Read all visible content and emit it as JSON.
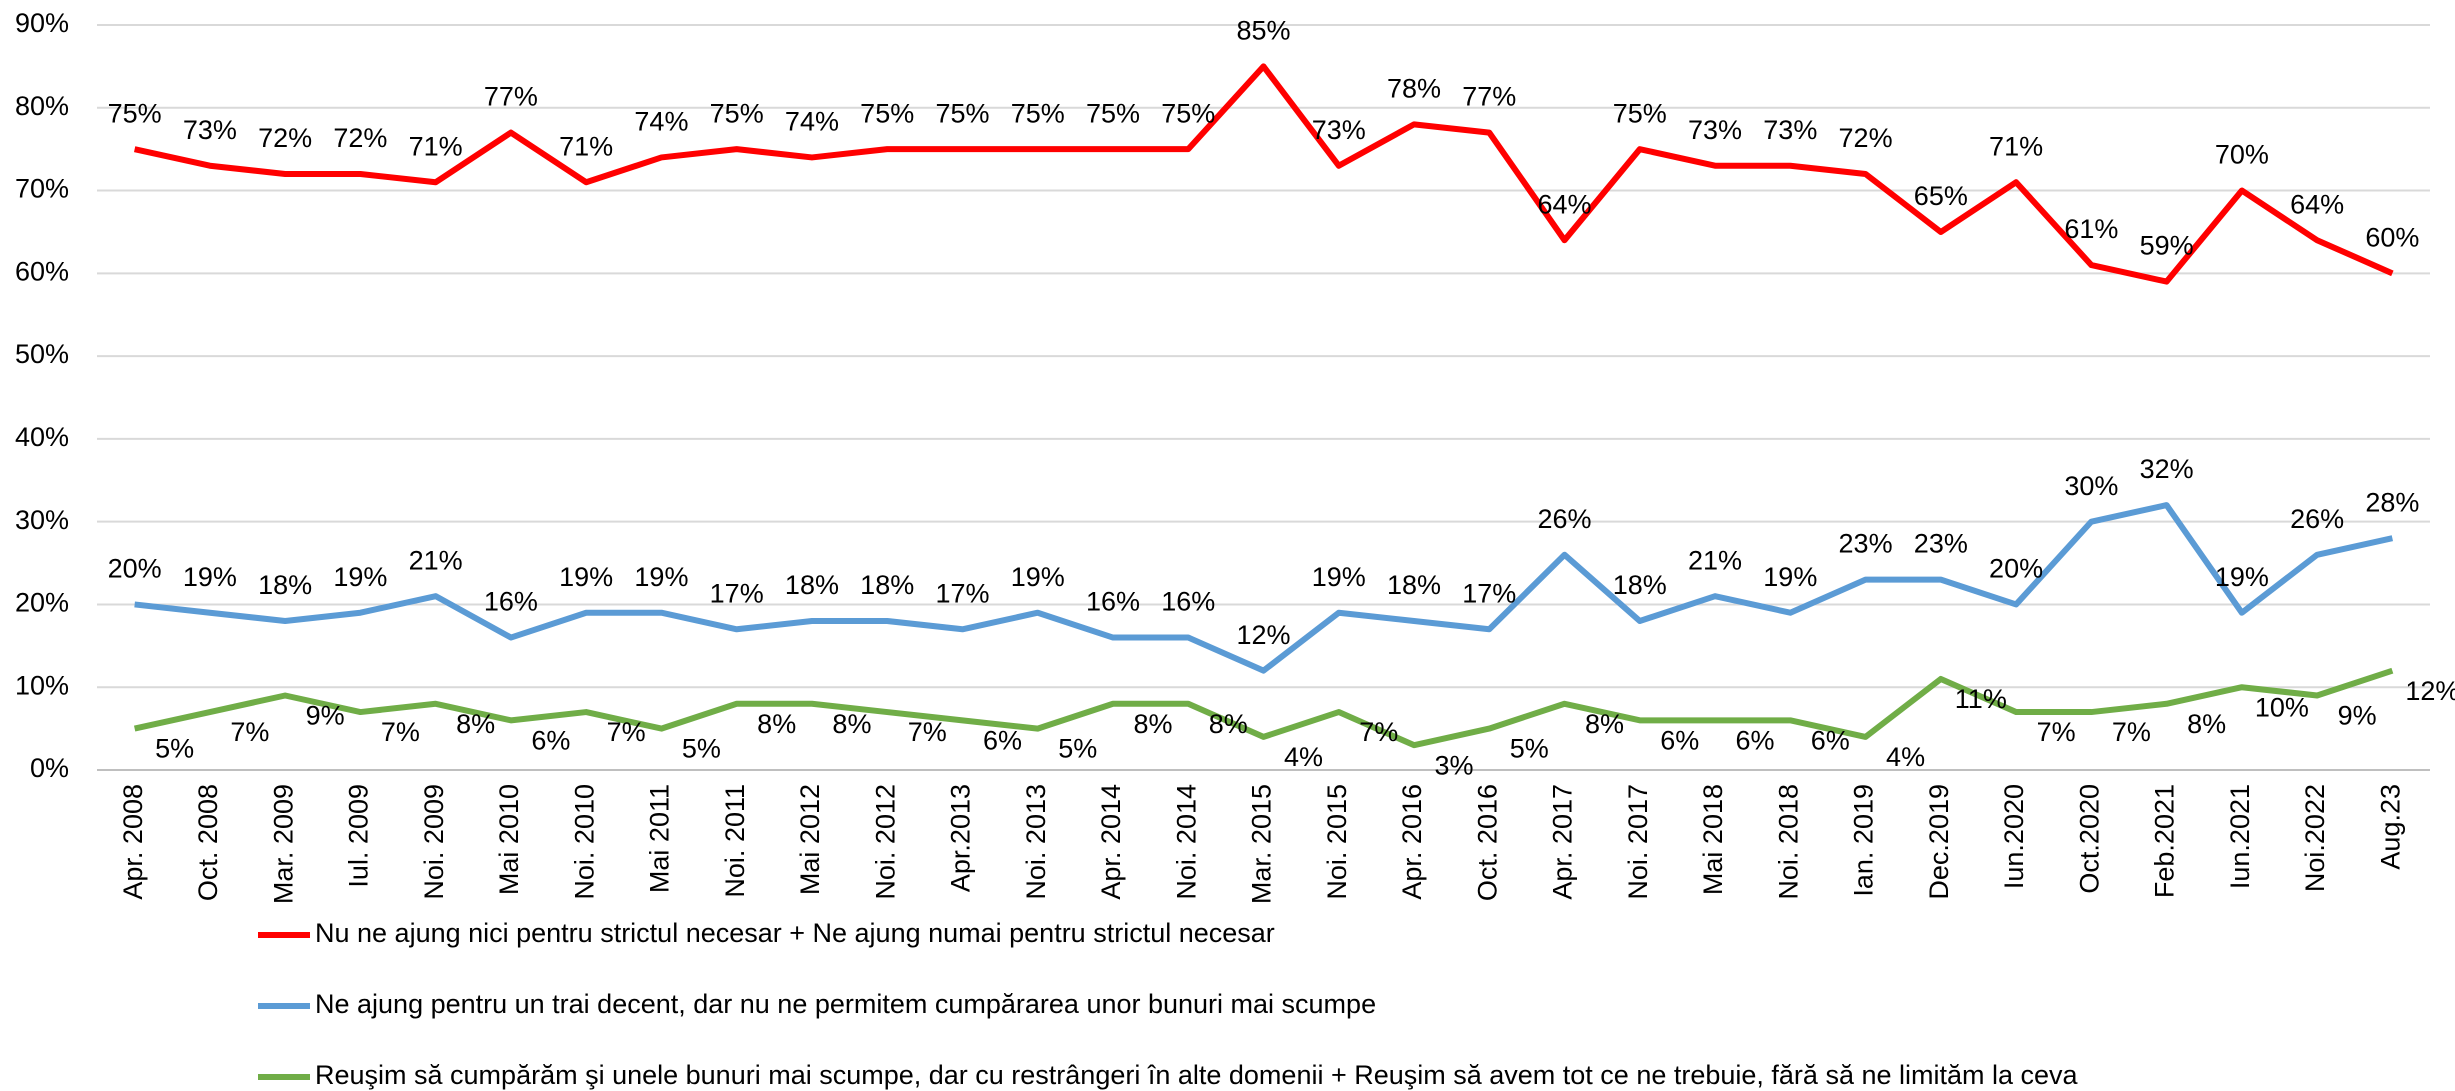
{
  "chart_data": {
    "type": "line",
    "categories": [
      "Apr. 2008",
      "Oct. 2008",
      "Mar. 2009",
      "Iul. 2009",
      "Noi. 2009",
      "Mai 2010",
      "Noi. 2010",
      "Mai 2011",
      "Noi. 2011",
      "Mai 2012",
      "Noi. 2012",
      "Apr.2013",
      "Noi. 2013",
      "Apr. 2014",
      "Noi. 2014",
      "Mar. 2015",
      "Noi. 2015",
      "Apr. 2016",
      "Oct. 2016",
      "Apr. 2017",
      "Noi. 2017",
      "Mai 2018",
      "Noi. 2018",
      "Ian. 2019",
      "Dec.2019",
      "Iun.2020",
      "Oct.2020",
      "Feb.2021",
      "Iun.2021",
      "Noi.2022",
      "Aug.23"
    ],
    "series": [
      {
        "name": "Nu ne ajung nici pentru strictul necesar + Ne ajung numai pentru strictul necesar",
        "color": "#ff0000",
        "values": [
          75,
          73,
          72,
          72,
          71,
          77,
          71,
          74,
          75,
          74,
          75,
          75,
          75,
          75,
          75,
          85,
          73,
          78,
          77,
          64,
          75,
          73,
          73,
          72,
          65,
          71,
          61,
          59,
          70,
          64,
          60
        ],
        "value_labels": [
          "75%",
          "73%",
          "72%",
          "72%",
          "71%",
          "77%",
          "71%",
          "74%",
          "75%",
          "74%",
          "75%",
          "75%",
          "75%",
          "75%",
          "75%",
          "85%",
          "73%",
          "78%",
          "77%",
          "64%",
          "75%",
          "73%",
          "73%",
          "72%",
          "65%",
          "71%",
          "61%",
          "59%",
          "70%",
          "64%",
          "60%"
        ]
      },
      {
        "name": "Ne ajung pentru un trai decent, dar nu ne permitem cumpărarea unor bunuri mai scumpe",
        "color": "#5b9bd5",
        "values": [
          20,
          19,
          18,
          19,
          21,
          16,
          19,
          19,
          17,
          18,
          18,
          17,
          19,
          16,
          16,
          12,
          19,
          18,
          17,
          26,
          18,
          21,
          19,
          23,
          23,
          20,
          30,
          32,
          19,
          26,
          28
        ],
        "value_labels": [
          "20%",
          "19%",
          "18%",
          "19%",
          "21%",
          "16%",
          "19%",
          "19%",
          "17%",
          "18%",
          "18%",
          "17%",
          "19%",
          "16%",
          "16%",
          "12%",
          "19%",
          "18%",
          "17%",
          "26%",
          "18%",
          "21%",
          "19%",
          "23%",
          "23%",
          "20%",
          "30%",
          "32%",
          "19%",
          "26%",
          "28%"
        ]
      },
      {
        "name": "Reuşim să cumpărăm şi unele bunuri mai scumpe, dar cu restrângeri în alte domenii + Reuşim să avem tot ce ne trebuie, fără să ne limităm la ceva",
        "color": "#70ad47",
        "values": [
          5,
          7,
          9,
          7,
          8,
          6,
          7,
          5,
          8,
          8,
          7,
          6,
          5,
          8,
          8,
          4,
          7,
          3,
          5,
          8,
          6,
          6,
          6,
          4,
          11,
          7,
          7,
          8,
          10,
          9,
          12
        ],
        "value_labels": [
          "5%",
          "7%",
          "9%",
          "7%",
          "8%",
          "6%",
          "7%",
          "5%",
          "8%",
          "8%",
          "7%",
          "6%",
          "5%",
          "8%",
          "8%",
          "4%",
          "7%",
          "3%",
          "5%",
          "8%",
          "6%",
          "6%",
          "6%",
          "4%",
          "11%",
          "7%",
          "7%",
          "8%",
          "10%",
          "9%",
          "12%"
        ]
      }
    ],
    "ylim": [
      0,
      90
    ],
    "yticks": [
      {
        "value": 0,
        "label": "0%"
      },
      {
        "value": 10,
        "label": "10%"
      },
      {
        "value": 20,
        "label": "20%"
      },
      {
        "value": 30,
        "label": "30%"
      },
      {
        "value": 40,
        "label": "40%"
      },
      {
        "value": 50,
        "label": "50%"
      },
      {
        "value": 60,
        "label": "60%"
      },
      {
        "value": 70,
        "label": "70%"
      },
      {
        "value": 80,
        "label": "80%"
      },
      {
        "value": 90,
        "label": "90%"
      }
    ],
    "grid": true,
    "legend": "bottom"
  }
}
